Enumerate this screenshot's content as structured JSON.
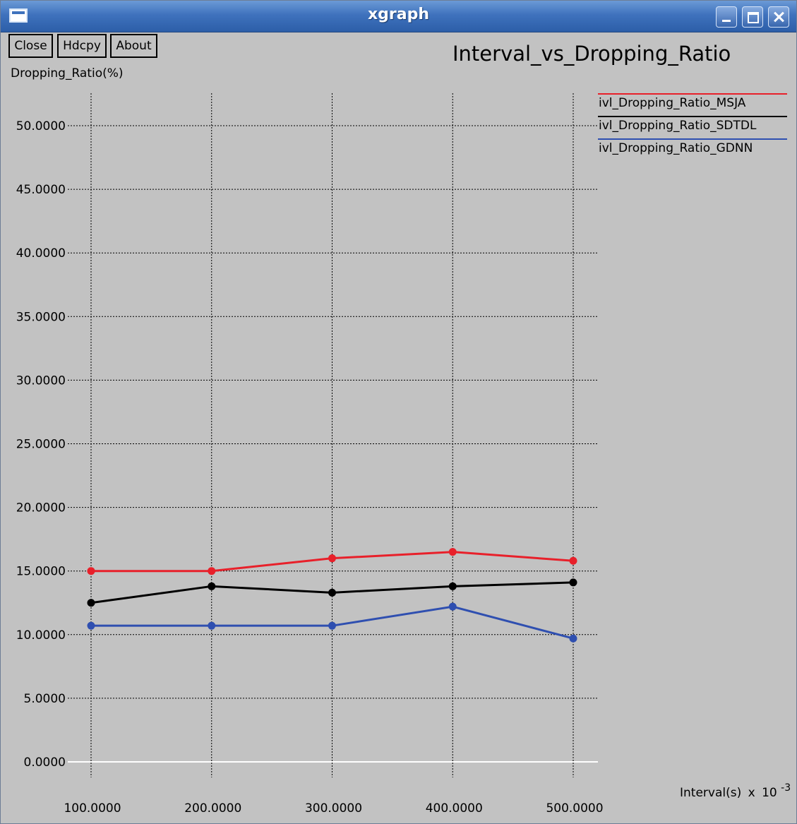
{
  "window": {
    "title": "xgraph"
  },
  "toolbar": {
    "close_label": "Close",
    "hdcpy_label": "Hdcpy",
    "about_label": "About"
  },
  "colors": {
    "background": "#c2c2c2",
    "grid": "#000000",
    "zero_line": "#ffffff"
  },
  "chart_data": {
    "type": "line",
    "title": "Interval_vs_Dropping_Ratio",
    "ylabel": "Dropping_Ratio(%)",
    "xlabel_main": "Interval(s)",
    "xlabel_times": "x",
    "xlabel_base": "10",
    "xlabel_exp": "-3",
    "x": [
      100,
      200,
      300,
      400,
      500
    ],
    "xtick_labels": [
      "100.0000",
      "200.0000",
      "300.0000",
      "400.0000",
      "500.0000"
    ],
    "yticks": [
      0,
      5,
      10,
      15,
      20,
      25,
      30,
      35,
      40,
      45,
      50
    ],
    "ytick_labels": [
      "0.0000",
      "5.0000",
      "10.0000",
      "15.0000",
      "20.0000",
      "25.0000",
      "30.0000",
      "35.0000",
      "40.0000",
      "45.0000",
      "50.0000"
    ],
    "xlim": [
      100,
      500
    ],
    "ylim": [
      0,
      50
    ],
    "grid": true,
    "legend_position": "top-right",
    "series": [
      {
        "name": "ivl_Dropping_Ratio_MSJA",
        "color": "#e8202a",
        "values": [
          15.0,
          15.0,
          16.0,
          16.5,
          15.8
        ]
      },
      {
        "name": "ivl_Dropping_Ratio_SDTDL",
        "color": "#000000",
        "values": [
          12.5,
          13.8,
          13.3,
          13.8,
          14.1
        ]
      },
      {
        "name": "ivl_Dropping_Ratio_GDNN",
        "color": "#2f4fb0",
        "values": [
          10.7,
          10.7,
          10.7,
          12.2,
          9.7
        ]
      }
    ]
  }
}
